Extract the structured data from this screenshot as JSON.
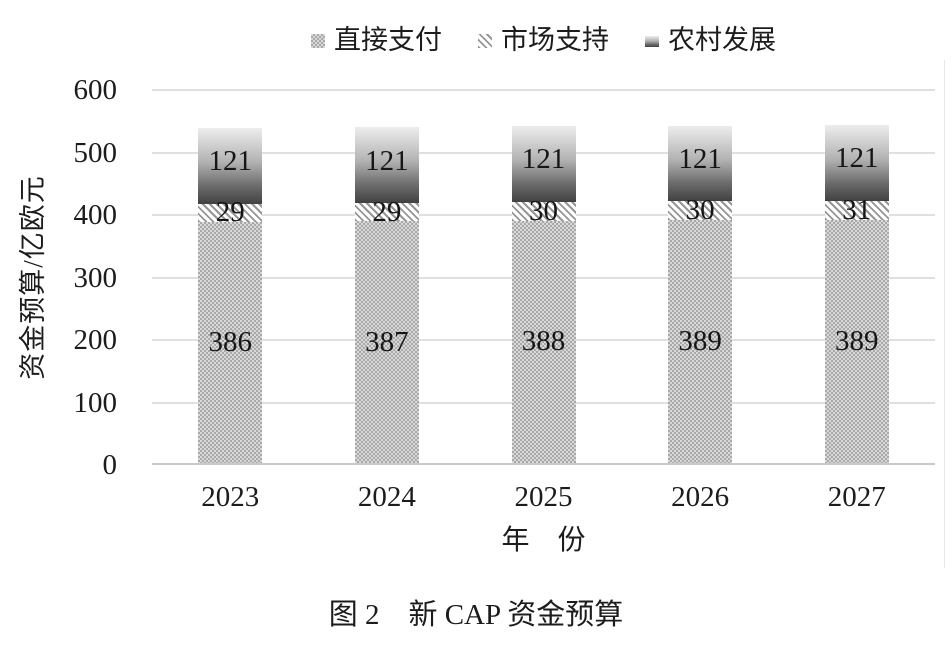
{
  "figure": {
    "caption": "图 2　新 CAP 资金预算"
  },
  "chart_data": {
    "type": "bar",
    "stacked": true,
    "title": "",
    "categories": [
      "2023",
      "2024",
      "2025",
      "2026",
      "2027"
    ],
    "series": [
      {
        "name": "直接支付",
        "slug": "direct-payments",
        "pattern": "checker",
        "values": [
          386,
          387,
          388,
          389,
          389
        ]
      },
      {
        "name": "市场支持",
        "slug": "market-support",
        "pattern": "stripes",
        "values": [
          29,
          29,
          30,
          30,
          31
        ]
      },
      {
        "name": "农村发展",
        "slug": "rural-development",
        "pattern": "gradient",
        "values": [
          121,
          121,
          121,
          121,
          121
        ]
      }
    ],
    "xlabel": "年　份",
    "ylabel": "资金预算/亿欧元",
    "ylim": [
      0,
      600
    ],
    "yticks": [
      0,
      100,
      200,
      300,
      400,
      500,
      600
    ],
    "grid": true,
    "legend_position": "top"
  },
  "colors": {
    "checker_dark": "#a9a9a9",
    "checker_light": "#d8d8d8",
    "stripe": "#969696",
    "gradient_top": "#ededed",
    "gradient_bottom": "#414141",
    "gridline": "#e0e0e0",
    "axis_line": "#c9c9c9",
    "text": "#1c1c1c"
  }
}
